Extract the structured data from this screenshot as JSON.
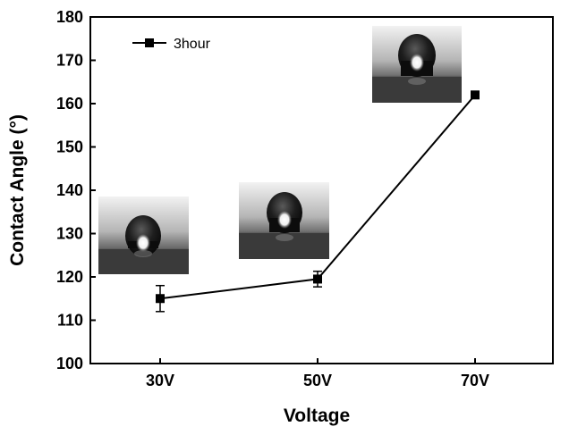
{
  "chart_data": {
    "type": "line",
    "categories": [
      "30V",
      "50V",
      "70V"
    ],
    "series": [
      {
        "name": "3hour",
        "values": [
          115,
          119.5,
          162
        ],
        "error": [
          3,
          1.8,
          0.6
        ],
        "color": "#000000",
        "marker": "square"
      }
    ],
    "xlabel": "Voltage",
    "ylabel": "Contact Angle (°)",
    "ylim": [
      100,
      180
    ],
    "yticks": [
      100,
      110,
      120,
      130,
      140,
      150,
      160,
      170,
      180
    ],
    "grid": false,
    "legend_position": "top-left",
    "insets": [
      {
        "category": "30V",
        "description": "water-droplet-photo"
      },
      {
        "category": "50V",
        "description": "water-droplet-photo"
      },
      {
        "category": "70V",
        "description": "water-droplet-photo"
      }
    ]
  }
}
